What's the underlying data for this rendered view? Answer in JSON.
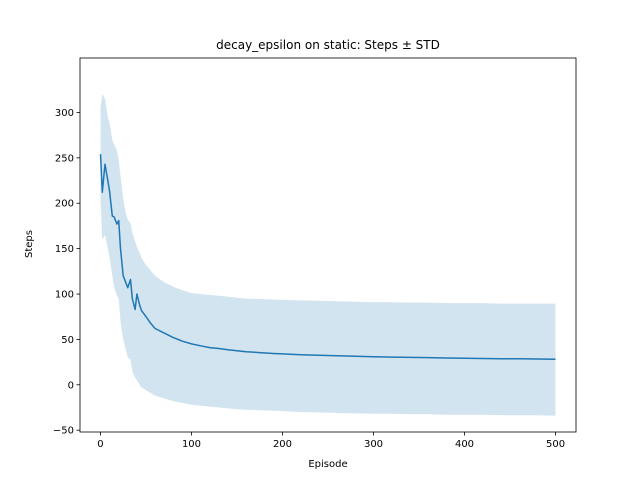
{
  "chart_data": {
    "type": "line",
    "title": "decay_epsilon on static: Steps ± STD",
    "xlabel": "Episode",
    "ylabel": "Steps",
    "xlim": [
      -22.5,
      522.5
    ],
    "ylim": [
      -52,
      360
    ],
    "xticks": [
      0,
      100,
      200,
      300,
      400,
      500
    ],
    "yticks": [
      -50,
      0,
      50,
      100,
      150,
      200,
      250,
      300
    ],
    "grid": false,
    "colors": {
      "line": "#1f77b4",
      "band": "#1f77b4"
    },
    "series": [
      {
        "style": "mean-with-std-band",
        "x": [
          0,
          2,
          5,
          8,
          10,
          13,
          15,
          18,
          20,
          22,
          25,
          28,
          30,
          33,
          35,
          38,
          40,
          43,
          45,
          50,
          55,
          60,
          70,
          80,
          90,
          100,
          110,
          120,
          130,
          140,
          150,
          160,
          175,
          190,
          200,
          220,
          240,
          260,
          280,
          300,
          320,
          340,
          360,
          380,
          400,
          420,
          440,
          460,
          480,
          500
        ],
        "mean": [
          254,
          212,
          243,
          225,
          213,
          186,
          185,
          177,
          181,
          150,
          120,
          112,
          107,
          116,
          95,
          83,
          100,
          88,
          82,
          75,
          68,
          62,
          57,
          52,
          48,
          45,
          43,
          41,
          40,
          38.5,
          37.5,
          36.5,
          35.5,
          34.5,
          34,
          33,
          32.5,
          32,
          31.5,
          31,
          30.5,
          30.2,
          30,
          29.5,
          29.3,
          29,
          28.8,
          28.6,
          28.4,
          28.2
        ],
        "upper": [
          305,
          320,
          315,
          295,
          288,
          270,
          265,
          258,
          248,
          230,
          205,
          188,
          182,
          178,
          168,
          158,
          152,
          145,
          140,
          132,
          126,
          120,
          113,
          108,
          104,
          101,
          100,
          99,
          98,
          97,
          96,
          95,
          94.5,
          94,
          93.5,
          93,
          92.5,
          92,
          91.5,
          91,
          91,
          90.5,
          90.5,
          90,
          90,
          90,
          89.5,
          89.5,
          89.5,
          89.5
        ],
        "lower": [
          205,
          160,
          165,
          150,
          140,
          120,
          108,
          98,
          95,
          70,
          50,
          38,
          30,
          28,
          15,
          8,
          5,
          0,
          -3,
          -6,
          -9,
          -12,
          -15,
          -18,
          -20,
          -22,
          -23,
          -24,
          -25,
          -26,
          -27,
          -27.5,
          -28,
          -28.5,
          -29,
          -30,
          -30.5,
          -31,
          -31.5,
          -32,
          -32,
          -32.5,
          -32.5,
          -33,
          -33,
          -33,
          -33.5,
          -33.5,
          -33.5,
          -34
        ]
      }
    ]
  }
}
